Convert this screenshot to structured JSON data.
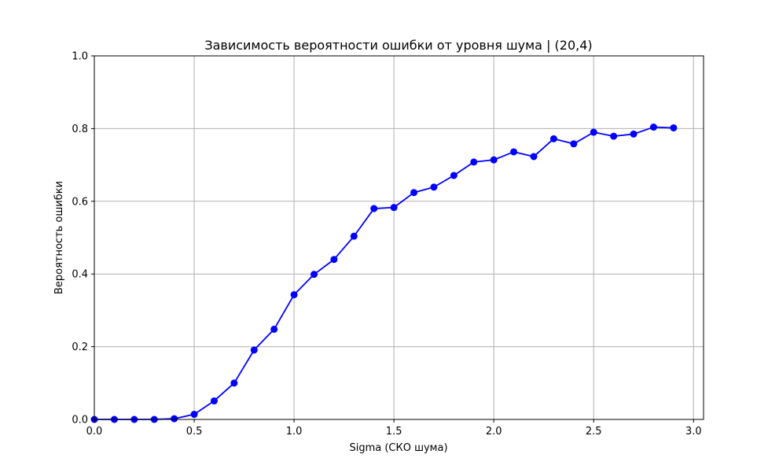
{
  "chart_data": {
    "type": "line",
    "title": "Зависимость вероятности ошибки от уровня шума | (20,4)",
    "xlabel": "Sigma (СКО шума)",
    "ylabel": "Вероятность ошибки",
    "xlim": [
      0,
      3.05
    ],
    "ylim": [
      0,
      1.0
    ],
    "grid": true,
    "x_ticks": [
      "0.0",
      "0.5",
      "1.0",
      "1.5",
      "2.0",
      "2.5",
      "3.0"
    ],
    "y_ticks": [
      "0.0",
      "0.2",
      "0.4",
      "0.6",
      "0.8",
      "1.0"
    ],
    "series": [
      {
        "color": "#0000ff",
        "marker": "circle",
        "x": [
          0.0,
          0.1,
          0.2,
          0.3,
          0.4,
          0.5,
          0.6,
          0.7,
          0.8,
          0.9,
          1.0,
          1.1,
          1.2,
          1.3,
          1.4,
          1.5,
          1.6,
          1.7,
          1.8,
          1.9,
          2.0,
          2.1,
          2.2,
          2.3,
          2.4,
          2.5,
          2.6,
          2.7,
          2.8,
          2.9
        ],
        "y": [
          0.0,
          0.0,
          0.0,
          0.0,
          0.002,
          0.014,
          0.051,
          0.1,
          0.191,
          0.248,
          0.343,
          0.399,
          0.44,
          0.504,
          0.58,
          0.583,
          0.624,
          0.639,
          0.671,
          0.708,
          0.714,
          0.736,
          0.723,
          0.772,
          0.758,
          0.79,
          0.779,
          0.785,
          0.804,
          0.802
        ]
      }
    ]
  }
}
